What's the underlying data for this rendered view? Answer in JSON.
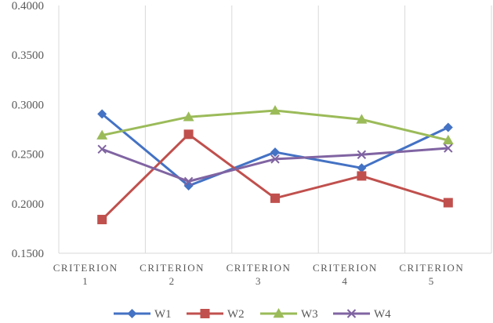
{
  "chart_data": {
    "type": "line",
    "title": "",
    "xlabel": "",
    "ylabel": "",
    "categories": [
      [
        "CRITERION",
        "1"
      ],
      [
        "CRITERION",
        "2"
      ],
      [
        "CRITERION",
        "3"
      ],
      [
        "CRITERION",
        "4"
      ],
      [
        "CRITERION",
        "5"
      ]
    ],
    "ylim": [
      0.15,
      0.4
    ],
    "yticks": [
      "0.1500",
      "0.2000",
      "0.2500",
      "0.3000",
      "0.3500",
      "0.4000"
    ],
    "grid": {
      "vertical": true,
      "horizontal": false
    },
    "legend": "bottom",
    "series": [
      {
        "name": "W1",
        "color": "#4472C4",
        "marker": "diamond",
        "values": [
          0.2905,
          0.218,
          0.252,
          0.236,
          0.277
        ]
      },
      {
        "name": "W2",
        "color": "#C0504D",
        "marker": "square",
        "values": [
          0.184,
          0.27,
          0.2055,
          0.228,
          0.201
        ]
      },
      {
        "name": "W3",
        "color": "#9BBB59",
        "marker": "triangle",
        "values": [
          0.269,
          0.2875,
          0.294,
          0.285,
          0.264
        ]
      },
      {
        "name": "W4",
        "color": "#8064A2",
        "marker": "x",
        "values": [
          0.255,
          0.2225,
          0.245,
          0.2495,
          0.256
        ]
      }
    ]
  }
}
